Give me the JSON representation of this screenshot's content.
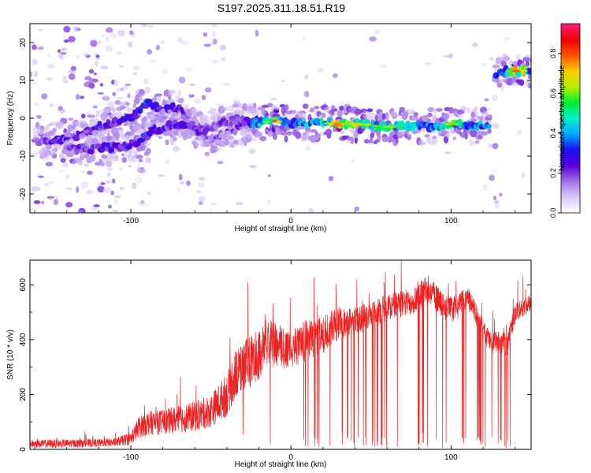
{
  "title": "S197.2025.311.18.51.R19",
  "colors": {
    "snr_line": "#ee2222",
    "colormap": [
      "#ffffff",
      "#d8c8f4",
      "#a070e8",
      "#5a00d8",
      "#1a10f0",
      "#00a8ff",
      "#00f0c8",
      "#00ee30",
      "#b8ee00",
      "#ffcc00",
      "#ff5000",
      "#ee0000",
      "#ff1d82"
    ]
  },
  "chart_data": [
    {
      "type": "heatmap",
      "name": "spectrogram",
      "xlabel": "Height of straight line (km)",
      "ylabel": "Frequency (Hz)",
      "xlim": [
        -163,
        150
      ],
      "ylim": [
        -25,
        25
      ],
      "xticks": [
        -100,
        0,
        100
      ],
      "xtick_labels": [
        "-100",
        "0",
        "100"
      ],
      "yticks": [
        -20,
        -10,
        0,
        10,
        20
      ],
      "ytick_labels": [
        "-20",
        "-10",
        "0",
        "10",
        "20"
      ],
      "colorbar": {
        "label": "Normalized spectral amplitude",
        "range": [
          0.0,
          0.95
        ],
        "ticks": [
          0.0,
          0.2,
          0.4,
          0.6,
          0.8
        ],
        "tick_labels": [
          "0.0",
          "0.2",
          "0.4",
          "0.6",
          "0.8"
        ]
      },
      "ridges": [
        {
          "name": "upper-branch",
          "points": [
            [
              -160,
              -6,
              0.25
            ],
            [
              -140,
              -5.5,
              0.3
            ],
            [
              -125,
              -3,
              0.3
            ],
            [
              -110,
              -1,
              0.35
            ],
            [
              -100,
              0,
              0.35
            ],
            [
              -90,
              4,
              0.4
            ],
            [
              -80,
              2,
              0.35
            ],
            [
              -70,
              3,
              0.3
            ],
            [
              -62,
              -2,
              0.3
            ],
            [
              -52,
              -5.5,
              0.3
            ],
            [
              -40,
              -4,
              0.3
            ],
            [
              -30,
              -2,
              0.3
            ],
            [
              -20,
              -0.5,
              0.3
            ]
          ]
        },
        {
          "name": "lower-branch",
          "points": [
            [
              -140,
              -8,
              0.25
            ],
            [
              -120,
              -8,
              0.3
            ],
            [
              -105,
              -7.5,
              0.35
            ],
            [
              -95,
              -6,
              0.4
            ],
            [
              -85,
              -3,
              0.35
            ],
            [
              -75,
              -2,
              0.3
            ],
            [
              -65,
              -1.5,
              0.3
            ],
            [
              -55,
              -3,
              0.25
            ],
            [
              -45,
              -1.5,
              0.25
            ],
            [
              -35,
              -0.5,
              0.25
            ],
            [
              -25,
              -1,
              0.3
            ]
          ]
        },
        {
          "name": "main-band",
          "points": [
            [
              -25,
              -1.5,
              0.4
            ],
            [
              -15,
              -1,
              0.65
            ],
            [
              -10,
              -0.7,
              0.85
            ],
            [
              -5,
              -1,
              0.6
            ],
            [
              0,
              -1.3,
              0.45
            ],
            [
              10,
              -1,
              0.5
            ],
            [
              20,
              -1.3,
              0.55
            ],
            [
              28,
              -1.6,
              0.85
            ],
            [
              35,
              -1.5,
              0.7
            ],
            [
              45,
              -1.6,
              0.7
            ],
            [
              55,
              -2.2,
              0.6
            ],
            [
              62,
              -2.3,
              0.65
            ],
            [
              70,
              -2,
              0.6
            ],
            [
              78,
              -2,
              0.55
            ],
            [
              85,
              -2.2,
              0.45
            ],
            [
              92,
              -2,
              0.5
            ],
            [
              98,
              -1.5,
              0.7
            ],
            [
              105,
              -1.5,
              0.6
            ],
            [
              112,
              -2,
              0.5
            ],
            [
              120,
              -2.2,
              0.55
            ],
            [
              124,
              -2.4,
              0.45
            ]
          ]
        },
        {
          "name": "upper-right-band",
          "points": [
            [
              128,
              12,
              0.4
            ],
            [
              134,
              12.5,
              0.55
            ],
            [
              140,
              12.5,
              0.85
            ],
            [
              146,
              12.5,
              0.7
            ],
            [
              150,
              12.8,
              0.5
            ]
          ]
        }
      ]
    },
    {
      "type": "line",
      "name": "snr",
      "xlabel": "Height of straight line (km)",
      "ylabel": "SNR (10 * v/v)",
      "xlim": [
        -163,
        150
      ],
      "ylim": [
        0,
        690
      ],
      "xticks": [
        -100,
        0,
        100
      ],
      "xtick_labels": [
        "-100",
        "0",
        "100"
      ],
      "yticks": [
        0,
        200,
        400,
        600
      ],
      "ytick_labels": [
        "0",
        "200",
        "400",
        "600"
      ],
      "envelope": [
        [
          -163,
          20,
          15
        ],
        [
          -130,
          22,
          15
        ],
        [
          -110,
          25,
          15
        ],
        [
          -100,
          40,
          25
        ],
        [
          -95,
          80,
          40
        ],
        [
          -90,
          95,
          45
        ],
        [
          -80,
          100,
          45
        ],
        [
          -70,
          110,
          50
        ],
        [
          -60,
          120,
          55
        ],
        [
          -50,
          140,
          60
        ],
        [
          -40,
          200,
          80
        ],
        [
          -35,
          270,
          90
        ],
        [
          -30,
          300,
          95
        ],
        [
          -25,
          320,
          95
        ],
        [
          -20,
          350,
          95
        ],
        [
          -15,
          390,
          90
        ],
        [
          -10,
          380,
          85
        ],
        [
          -5,
          370,
          85
        ],
        [
          0,
          370,
          80
        ],
        [
          5,
          380,
          75
        ],
        [
          10,
          400,
          75
        ],
        [
          20,
          420,
          70
        ],
        [
          30,
          460,
          60
        ],
        [
          40,
          470,
          55
        ],
        [
          50,
          490,
          50
        ],
        [
          60,
          520,
          50
        ],
        [
          70,
          530,
          50
        ],
        [
          75,
          540,
          50
        ],
        [
          80,
          560,
          50
        ],
        [
          85,
          590,
          50
        ],
        [
          90,
          560,
          50
        ],
        [
          95,
          520,
          50
        ],
        [
          100,
          510,
          50
        ],
        [
          105,
          520,
          45
        ],
        [
          110,
          560,
          40
        ],
        [
          115,
          500,
          40
        ],
        [
          120,
          430,
          40
        ],
        [
          125,
          390,
          40
        ],
        [
          130,
          390,
          40
        ],
        [
          135,
          380,
          40
        ],
        [
          140,
          500,
          35
        ],
        [
          145,
          520,
          35
        ],
        [
          150,
          530,
          35
        ]
      ],
      "dropout_intervals": [
        [
          8,
          62
        ],
        [
          78,
          98
        ],
        [
          106,
          138
        ]
      ]
    }
  ]
}
